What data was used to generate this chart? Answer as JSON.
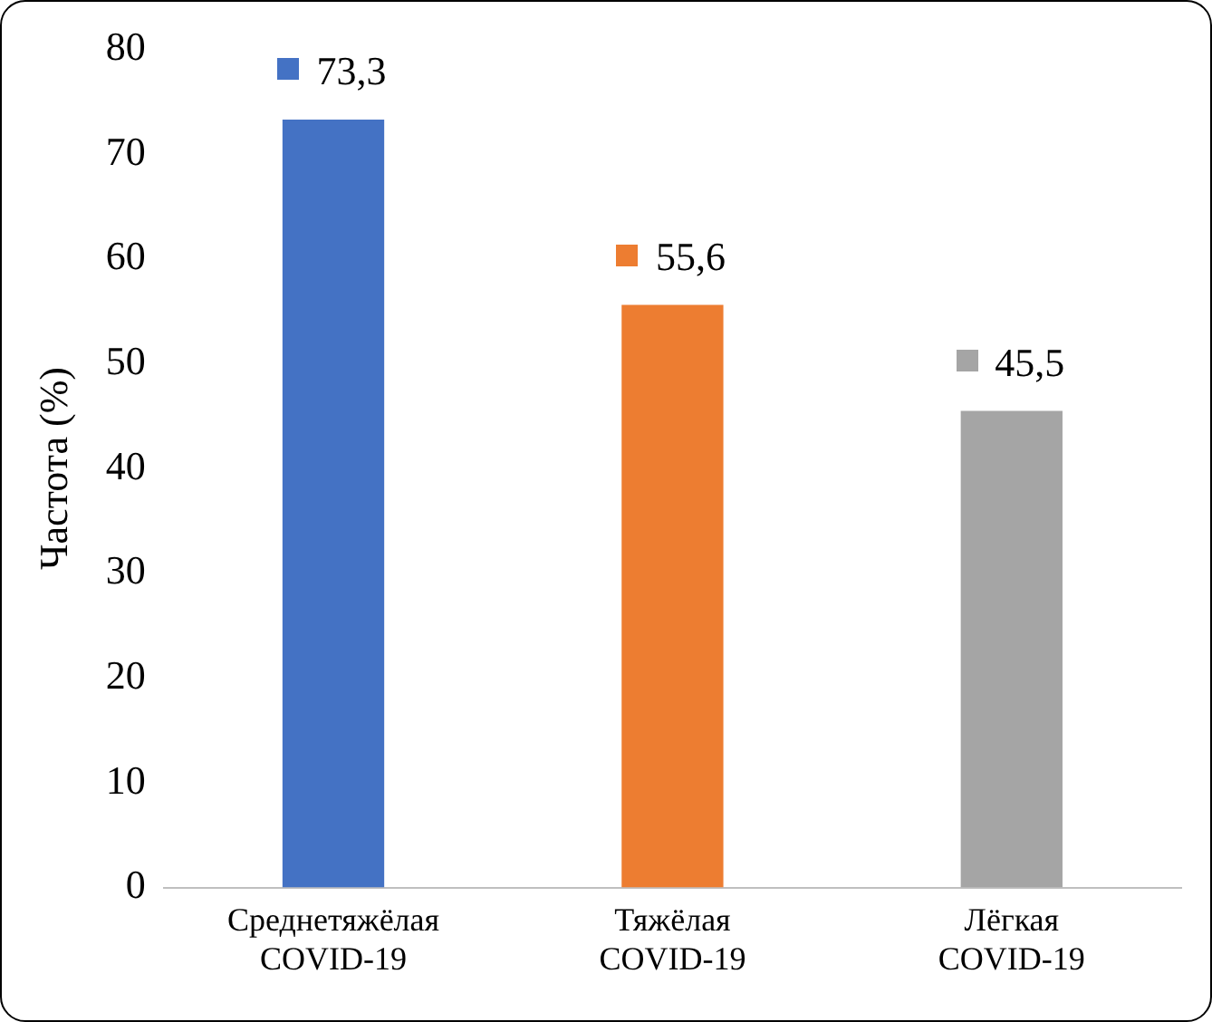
{
  "chart_data": {
    "type": "bar",
    "ylabel": "Частота (%)",
    "categories": [
      "Среднетяжёлая COVID-19",
      "Тяжёлая COVID-19",
      "Лёгкая COVID-19"
    ],
    "values": [
      73.3,
      55.6,
      45.5
    ],
    "colors": [
      "#4472c4",
      "#ed7d31",
      "#a5a5a5"
    ],
    "value_labels": [
      "73,3",
      "55,6",
      "45,5"
    ],
    "ylim": [
      0,
      80
    ],
    "yticks": [
      0,
      10,
      20,
      30,
      40,
      50,
      60,
      70,
      80
    ],
    "grid": false,
    "legend": false
  }
}
